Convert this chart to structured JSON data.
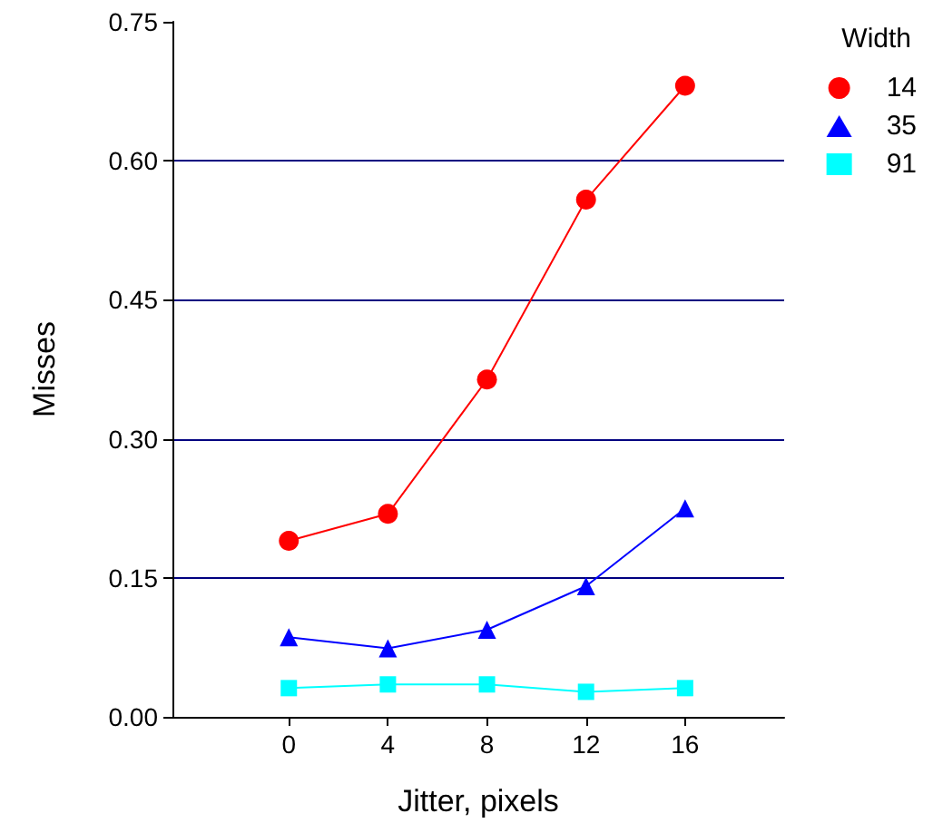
{
  "chart_data": {
    "type": "line",
    "xlabel": "Jitter, pixels",
    "ylabel": "Misses",
    "legend_title": "Width",
    "x": [
      0,
      4,
      8,
      12,
      16
    ],
    "series": [
      {
        "name": "14",
        "color": "#ff0000",
        "marker": "circle",
        "values": [
          0.19,
          0.219,
          0.364,
          0.558,
          0.681
        ]
      },
      {
        "name": "35",
        "color": "#0000ff",
        "marker": "triangle",
        "values": [
          0.086,
          0.074,
          0.094,
          0.141,
          0.225
        ]
      },
      {
        "name": "91",
        "color": "#00ffff",
        "marker": "square",
        "values": [
          0.031,
          0.035,
          0.035,
          0.027,
          0.031
        ]
      }
    ],
    "xlim": [
      -4.7,
      20
    ],
    "xticks": [
      0,
      4,
      8,
      12,
      16
    ],
    "ylim": [
      0,
      0.75
    ],
    "yticks": [
      {
        "value": 0,
        "label": "0.00"
      },
      {
        "value": 0.15,
        "label": "0.15"
      },
      {
        "value": 0.3,
        "label": "0.30"
      },
      {
        "value": 0.45,
        "label": "0.45"
      },
      {
        "value": 0.6,
        "label": "0.60"
      },
      {
        "value": 0.75,
        "label": "0.75"
      }
    ],
    "grid": "y",
    "legend": "top right"
  }
}
